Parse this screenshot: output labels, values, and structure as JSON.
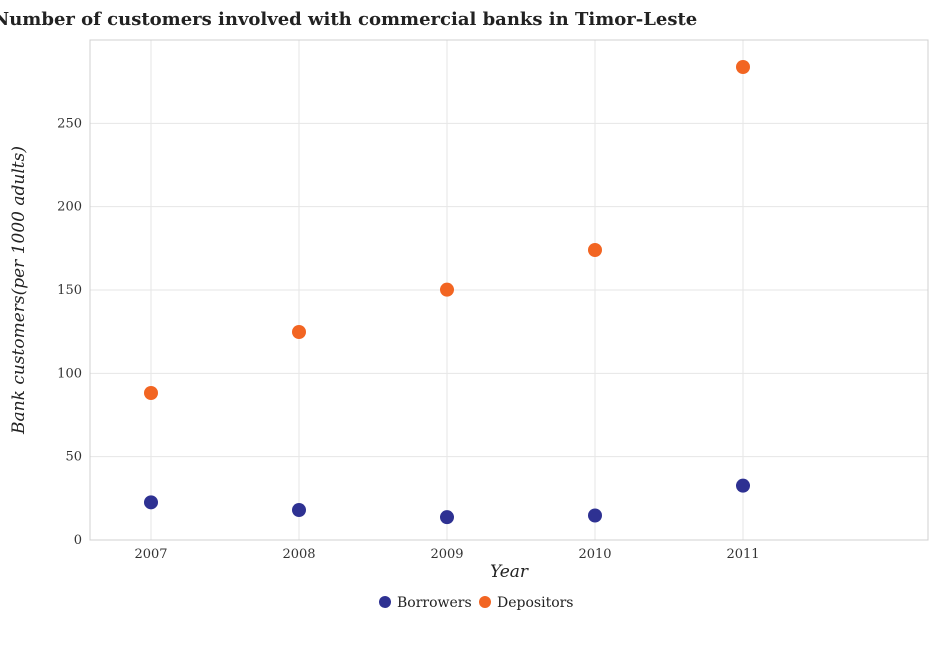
{
  "chart_data": {
    "type": "scatter",
    "title": "Number of customers involved with commercial banks in Timor-Leste",
    "xlabel": "Year",
    "ylabel": "Bank customers(per 1000 adults)",
    "categories": [
      "2007",
      "2008",
      "2009",
      "2010",
      "2011"
    ],
    "ylim": [
      0,
      300
    ],
    "yticks": [
      0,
      50,
      100,
      150,
      200,
      250
    ],
    "grid": true,
    "legend_position": "bottom-center",
    "series": [
      {
        "name": "Borrowers",
        "color": "#2e3192",
        "values": [
          22.6,
          18.0,
          13.7,
          14.7,
          32.6
        ]
      },
      {
        "name": "Depositors",
        "color": "#f26522",
        "values": [
          88.2,
          124.8,
          150.2,
          174.0,
          283.8
        ]
      }
    ]
  }
}
